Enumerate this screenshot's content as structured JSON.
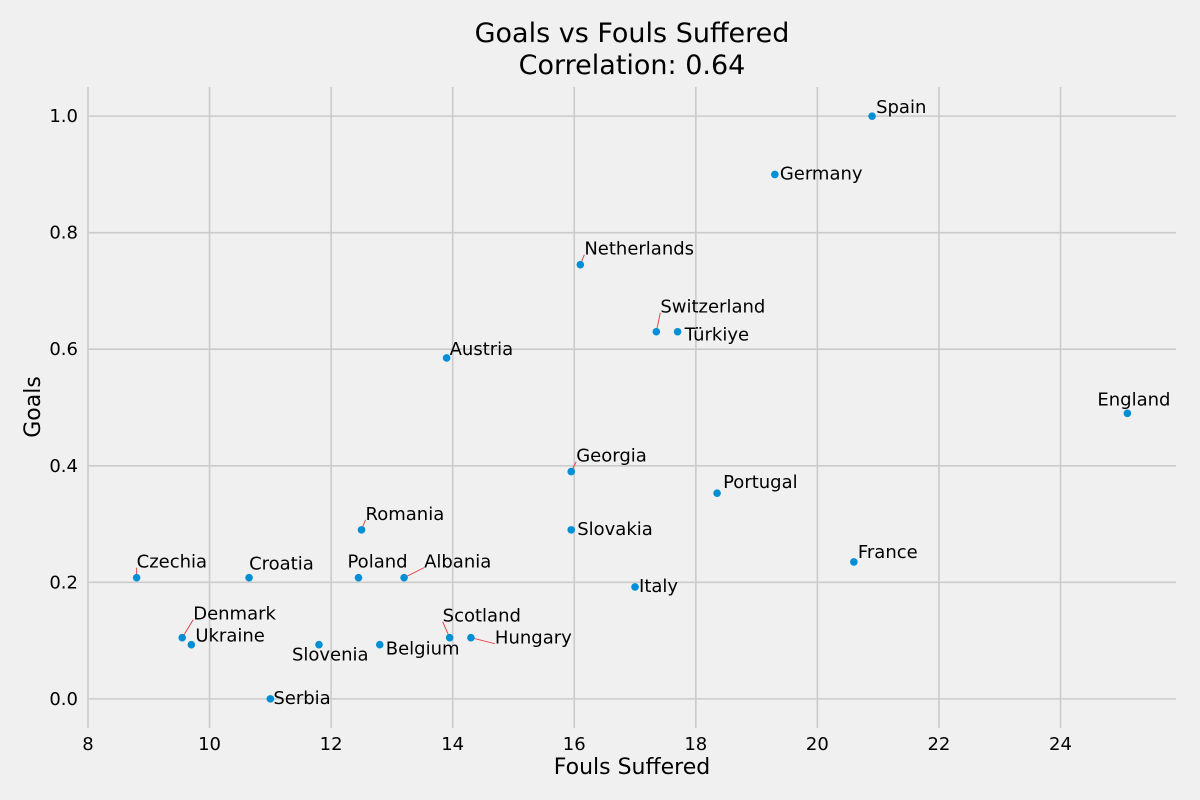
{
  "chart_data": {
    "type": "scatter",
    "title": "Goals vs Fouls Suffered",
    "subtitle": "Correlation: 0.64",
    "xlabel": "Fouls Suffered",
    "ylabel": "Goals",
    "xlim": [
      8,
      25.9
    ],
    "ylim": [
      -0.05,
      1.05
    ],
    "xticks": [
      8,
      10,
      12,
      14,
      16,
      18,
      20,
      22,
      24
    ],
    "xtick_labels": [
      "8",
      "10",
      "12",
      "14",
      "16",
      "18",
      "20",
      "22",
      "24"
    ],
    "yticks": [
      0.0,
      0.2,
      0.4,
      0.6,
      0.8,
      1.0
    ],
    "ytick_labels": [
      "0.0",
      "0.2",
      "0.4",
      "0.6",
      "0.8",
      "1.0"
    ],
    "grid": true,
    "marker_color": "#008fd5",
    "leader_color": "#e5484d",
    "points": [
      {
        "label": "Spain",
        "x": 20.9,
        "y": 1.0
      },
      {
        "label": "Germany",
        "x": 19.3,
        "y": 0.9
      },
      {
        "label": "Netherlands",
        "x": 16.1,
        "y": 0.745
      },
      {
        "label": "Switzerland",
        "x": 17.35,
        "y": 0.63
      },
      {
        "label": "Türkiye",
        "x": 17.7,
        "y": 0.63
      },
      {
        "label": "Austria",
        "x": 13.9,
        "y": 0.585
      },
      {
        "label": "England",
        "x": 25.1,
        "y": 0.49
      },
      {
        "label": "Georgia",
        "x": 15.95,
        "y": 0.39
      },
      {
        "label": "Portugal",
        "x": 18.35,
        "y": 0.353
      },
      {
        "label": "Romania",
        "x": 12.5,
        "y": 0.29
      },
      {
        "label": "Slovakia",
        "x": 15.95,
        "y": 0.29
      },
      {
        "label": "France",
        "x": 20.6,
        "y": 0.235
      },
      {
        "label": "Czechia",
        "x": 8.8,
        "y": 0.208
      },
      {
        "label": "Croatia",
        "x": 10.65,
        "y": 0.208
      },
      {
        "label": "Poland",
        "x": 12.45,
        "y": 0.208
      },
      {
        "label": "Albania",
        "x": 13.2,
        "y": 0.208
      },
      {
        "label": "Italy",
        "x": 17.0,
        "y": 0.192
      },
      {
        "label": "Denmark",
        "x": 9.55,
        "y": 0.105
      },
      {
        "label": "Ukraine",
        "x": 9.7,
        "y": 0.093
      },
      {
        "label": "Scotland",
        "x": 13.95,
        "y": 0.105
      },
      {
        "label": "Hungary",
        "x": 14.3,
        "y": 0.105
      },
      {
        "label": "Slovenia",
        "x": 11.8,
        "y": 0.093
      },
      {
        "label": "Belgium",
        "x": 12.8,
        "y": 0.093
      },
      {
        "label": "Serbia",
        "x": 11.0,
        "y": 0.0
      }
    ]
  }
}
